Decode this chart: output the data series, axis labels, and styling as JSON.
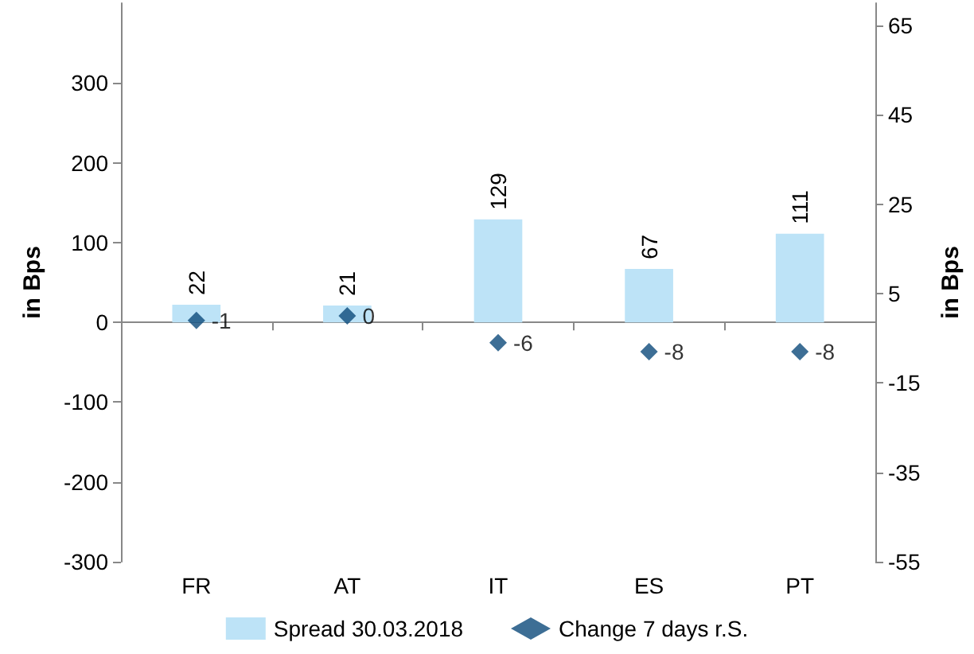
{
  "chart_data": {
    "type": "bar",
    "categories": [
      "FR",
      "AT",
      "IT",
      "ES",
      "PT"
    ],
    "series": [
      {
        "name": "Spread 30.03.2018",
        "color": "#bde3f7",
        "values": [
          22,
          21,
          129,
          67,
          111
        ]
      },
      {
        "name": "Change 7 days r.S.",
        "type": "scatter",
        "axis": "y2",
        "color": "#0d4a7a",
        "marker": "diamond",
        "values": [
          -1,
          0,
          -6,
          -8,
          -8
        ]
      }
    ],
    "ylabel": "in Bps",
    "y2label": "in Bps",
    "ylim": [
      -300,
      400
    ],
    "yticks": [
      -300,
      -200,
      -100,
      0,
      100,
      200,
      300
    ],
    "y2lim": [
      -55,
      70
    ],
    "y2ticks": [
      -55,
      -35,
      -15,
      5,
      25,
      45,
      65
    ],
    "data_labels": true,
    "legend": "bottom"
  }
}
